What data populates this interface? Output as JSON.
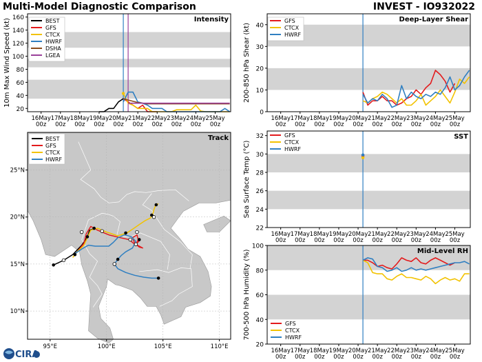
{
  "header": {
    "left_title": "Multi-Model Diagnostic Comparison",
    "right_title": "INVEST - IO932022",
    "logo_text": "CIRA"
  },
  "colors": {
    "BEST": "#000000",
    "GFS": "#e31a1c",
    "CTCX": "#f2c200",
    "HWRF": "#2f7fc1",
    "DSHA": "#8c4a1a",
    "LGEA": "#9a3f9a",
    "band": "#d3d3d3",
    "land": "#c8c8c8",
    "water": "#ffffff"
  },
  "time_axis": {
    "ticks": [
      {
        "d": "16May",
        "h": "00z"
      },
      {
        "d": "17May",
        "h": "00z"
      },
      {
        "d": "18May",
        "h": "00z"
      },
      {
        "d": "19May",
        "h": "00z"
      },
      {
        "d": "20May",
        "h": "00z"
      },
      {
        "d": "21May",
        "h": "00z"
      },
      {
        "d": "22May",
        "h": "00z"
      },
      {
        "d": "23May",
        "h": "00z"
      },
      {
        "d": "24May",
        "h": "00z"
      },
      {
        "d": "25May",
        "h": "00z"
      }
    ],
    "t0_day": 20.25
  },
  "chart_data": [
    {
      "id": "intensity",
      "type": "line",
      "title": "Intensity",
      "ylabel": "10m Max Wind Speed (kt)",
      "xlim": [
        15.3,
        25.8
      ],
      "ylim": [
        15,
        165
      ],
      "yticks": [
        20,
        40,
        60,
        80,
        100,
        120,
        140,
        160
      ],
      "bands": [
        [
          35,
          64
        ],
        [
          83,
          96
        ],
        [
          113,
          137
        ]
      ],
      "vlines": [
        {
          "x": 20.25,
          "color": "HWRF"
        },
        {
          "x": 20.5,
          "color": "LGEA"
        }
      ],
      "legend": [
        "BEST",
        "GFS",
        "CTCX",
        "HWRF",
        "DSHA",
        "LGEA"
      ],
      "series": [
        {
          "name": "BEST",
          "x": [
            19.0,
            19.25,
            19.5,
            19.75,
            20.0,
            20.25
          ],
          "y": [
            15,
            15,
            20,
            20,
            30,
            35
          ]
        },
        {
          "name": "GFS",
          "x": [
            20.25,
            20.5,
            20.75,
            21.0,
            21.25,
            21.5,
            21.75,
            22.0
          ],
          "y": [
            35,
            30,
            25,
            20,
            25,
            15,
            15,
            15
          ]
        },
        {
          "name": "CTCX",
          "x": [
            20.25,
            20.5,
            20.75,
            21.0,
            21.25,
            21.5,
            21.75,
            22.0,
            22.25,
            22.5,
            22.75,
            23.0,
            23.25,
            23.5,
            23.75,
            24.0,
            24.25,
            24.5,
            24.75,
            25.0,
            25.25,
            25.5,
            25.75
          ],
          "y": [
            43,
            28,
            25,
            20,
            20,
            20,
            15,
            15,
            15,
            15,
            15,
            18,
            18,
            18,
            18,
            25,
            16,
            15,
            15,
            15,
            15,
            15,
            15
          ]
        },
        {
          "name": "HWRF",
          "x": [
            20.25,
            20.5,
            20.75,
            21.0,
            21.25,
            21.5,
            21.75,
            22.0,
            22.25,
            22.5,
            22.75,
            23.0,
            23.25,
            23.5,
            23.75,
            24.0,
            24.25,
            24.5,
            24.75,
            25.0,
            25.25,
            25.5,
            25.75
          ],
          "y": [
            30,
            45,
            45,
            30,
            28,
            25,
            20,
            20,
            20,
            15,
            15,
            15,
            15,
            15,
            15,
            15,
            15,
            15,
            15,
            15,
            15,
            20,
            15
          ]
        },
        {
          "name": "DSHA",
          "x": [
            20.25,
            20.5,
            20.75,
            21.0,
            21.25,
            21.5,
            21.75,
            22.0,
            22.25,
            22.5,
            22.75,
            23.0,
            23.25,
            23.5,
            23.75,
            24.0,
            24.25,
            24.5,
            24.75,
            25.0,
            25.25,
            25.5,
            25.75
          ],
          "y": [
            35,
            33,
            31,
            29,
            28,
            27,
            27,
            27,
            27,
            27,
            27,
            27,
            27,
            27,
            27,
            27,
            27,
            27,
            27,
            27,
            27,
            27,
            27
          ]
        },
        {
          "name": "LGEA",
          "x": [
            20.5,
            20.75,
            21.0,
            21.25,
            21.5,
            21.75,
            22.0,
            22.25,
            22.5,
            22.75,
            23.0,
            23.25,
            23.5,
            23.75,
            24.0,
            24.25,
            24.5,
            24.75,
            25.0,
            25.25,
            25.5,
            25.75
          ],
          "y": [
            28,
            28,
            28,
            28,
            28,
            28,
            28,
            28,
            28,
            28,
            28,
            28,
            28,
            28,
            28,
            28,
            28,
            28,
            28,
            28,
            28,
            28
          ]
        }
      ]
    },
    {
      "id": "shear",
      "type": "line",
      "title": "Deep-Layer Shear",
      "ylabel": "200-850 hPa Shear (kt)",
      "xlim": [
        15.3,
        25.8
      ],
      "ylim": [
        0,
        45
      ],
      "yticks": [
        0,
        10,
        20,
        30,
        40
      ],
      "bands": [
        [
          10,
          20
        ],
        [
          30,
          40
        ]
      ],
      "vlines": [
        {
          "x": 20.25,
          "color": "HWRF"
        }
      ],
      "legend": [
        "GFS",
        "CTCX",
        "HWRF"
      ],
      "series": [
        {
          "name": "GFS",
          "x": [
            20.25,
            20.5,
            20.75,
            21.0,
            21.25,
            21.5,
            21.75,
            22.0,
            22.25,
            22.5,
            22.75,
            23.0,
            23.25,
            23.5,
            23.75,
            24.0,
            24.25,
            24.5,
            24.75,
            25.0
          ],
          "y": [
            9,
            3,
            5,
            5,
            7,
            5,
            5,
            3,
            4,
            6,
            7,
            10,
            8,
            11,
            13,
            19,
            17,
            14,
            9,
            13
          ]
        },
        {
          "name": "CTCX",
          "x": [
            20.25,
            20.5,
            20.75,
            21.0,
            21.25,
            21.5,
            21.75,
            22.0,
            22.25,
            22.5,
            22.75,
            23.0,
            23.25,
            23.5,
            23.75,
            24.0,
            24.25,
            24.5,
            24.75,
            25.0,
            25.25,
            25.5,
            25.75
          ],
          "y": [
            5,
            4,
            6,
            7,
            9,
            8,
            6,
            4,
            6,
            3,
            3,
            5,
            8,
            3,
            5,
            7,
            10,
            7,
            4,
            9,
            15,
            13,
            16
          ]
        },
        {
          "name": "HWRF",
          "x": [
            20.25,
            20.5,
            20.75,
            21.0,
            21.25,
            21.5,
            21.75,
            22.0,
            22.25,
            22.5,
            22.75,
            23.0,
            23.25,
            23.5,
            23.75,
            24.0,
            24.25,
            24.5,
            24.75,
            25.0,
            25.25,
            25.5,
            25.75
          ],
          "y": [
            8,
            4,
            6,
            5,
            8,
            6,
            2,
            3,
            12,
            6,
            9,
            7,
            6,
            8,
            7,
            9,
            8,
            11,
            16,
            10,
            12,
            16,
            19
          ]
        }
      ]
    },
    {
      "id": "sst",
      "type": "line",
      "title": "SST",
      "ylabel": "Sea Surface Temp (°C)",
      "xlim": [
        15.3,
        25.8
      ],
      "ylim": [
        22,
        32.5
      ],
      "yticks": [
        22,
        24,
        26,
        28,
        30,
        32
      ],
      "bands": [
        [
          24,
          26
        ],
        [
          28,
          30
        ]
      ],
      "vlines": [
        {
          "x": 20.25,
          "color": "HWRF"
        }
      ],
      "legend": [
        "GFS",
        "CTCX",
        "HWRF"
      ],
      "series": [
        {
          "name": "GFS",
          "x": [
            20.25
          ],
          "y": [
            29.8
          ]
        },
        {
          "name": "CTCX",
          "x": [
            20.25
          ],
          "y": [
            29.6
          ]
        },
        {
          "name": "HWRF",
          "x": [
            20.25
          ],
          "y": [
            29.9
          ]
        }
      ]
    },
    {
      "id": "rh",
      "type": "line",
      "title": "Mid-Level RH",
      "ylabel": "700-500 hPa Humidity (%)",
      "xlim": [
        15.3,
        25.8
      ],
      "ylim": [
        20,
        100
      ],
      "yticks": [
        20,
        40,
        60,
        80,
        100
      ],
      "bands": [
        [
          40,
          60
        ],
        [
          80,
          100
        ]
      ],
      "vlines": [
        {
          "x": 20.25,
          "color": "HWRF"
        }
      ],
      "legend": [
        "GFS",
        "CTCX",
        "HWRF"
      ],
      "series": [
        {
          "name": "GFS",
          "x": [
            20.25,
            20.5,
            20.75,
            21.0,
            21.25,
            21.5,
            21.75,
            22.0,
            22.25,
            22.5,
            22.75,
            23.0,
            23.25,
            23.5,
            23.75,
            24.0,
            24.25,
            24.5,
            24.75,
            25.0
          ],
          "y": [
            88,
            88,
            86,
            83,
            84,
            82,
            81,
            85,
            90,
            88,
            87,
            90,
            86,
            85,
            88,
            90,
            88,
            86,
            84,
            86
          ]
        },
        {
          "name": "CTCX",
          "x": [
            20.25,
            20.5,
            20.75,
            21.0,
            21.25,
            21.5,
            21.75,
            22.0,
            22.25,
            22.5,
            22.75,
            23.0,
            23.25,
            23.5,
            23.75,
            24.0,
            24.25,
            24.5,
            24.75,
            25.0,
            25.25,
            25.5,
            25.75
          ],
          "y": [
            88,
            86,
            78,
            77,
            77,
            73,
            72,
            75,
            77,
            74,
            74,
            73,
            72,
            75,
            73,
            69,
            72,
            74,
            72,
            73,
            71,
            77,
            77
          ]
        },
        {
          "name": "HWRF",
          "x": [
            20.25,
            20.5,
            20.75,
            21.0,
            21.25,
            21.5,
            21.75,
            22.0,
            22.25,
            22.5,
            22.75,
            23.0,
            23.25,
            23.5,
            23.75,
            24.0,
            24.25,
            24.5,
            24.75,
            25.0,
            25.25,
            25.5,
            25.75
          ],
          "y": [
            88,
            90,
            89,
            83,
            82,
            79,
            80,
            82,
            79,
            80,
            82,
            80,
            81,
            80,
            81,
            82,
            83,
            84,
            85,
            86,
            86,
            87,
            85
          ]
        }
      ]
    },
    {
      "id": "track",
      "type": "scatter",
      "title": "Track",
      "xlim": [
        93,
        111
      ],
      "ylim": [
        7,
        29
      ],
      "xticks": [
        {
          "v": 95,
          "label": "95°E"
        },
        {
          "v": 100,
          "label": "100°E"
        },
        {
          "v": 105,
          "label": "105°E"
        },
        {
          "v": 110,
          "label": "110°E"
        }
      ],
      "yticks": [
        {
          "v": 10,
          "label": "10°N"
        },
        {
          "v": 15,
          "label": "15°N"
        },
        {
          "v": 20,
          "label": "20°N"
        },
        {
          "v": 25,
          "label": "25°N"
        }
      ],
      "legend": [
        "BEST",
        "GFS",
        "CTCX",
        "HWRF"
      ],
      "series": [
        {
          "name": "BEST",
          "lon": [
            95.3,
            96.2,
            97.0,
            97.4,
            97.8,
            98.1,
            98.3,
            98.5,
            99.0
          ],
          "lat": [
            14.9,
            15.4,
            16.0,
            16.5,
            17.0,
            17.5,
            17.9,
            18.6,
            18.8
          ]
        },
        {
          "name": "GFS",
          "lon": [
            97.2,
            97.6,
            98.0,
            98.2,
            98.6,
            99.2,
            100.2,
            101.2,
            102.0,
            102.6,
            102.8,
            102.7,
            102.3,
            102.5,
            102.9,
            103.2,
            102.6,
            103.0
          ],
          "lat": [
            16.0,
            16.6,
            17.2,
            18.2,
            19.0,
            18.6,
            18.1,
            17.8,
            17.6,
            17.0,
            17.6,
            18.1,
            17.8,
            17.2,
            16.8,
            16.7,
            17.1,
            17.6
          ]
        },
        {
          "name": "CTCX",
          "lon": [
            97.0,
            97.4,
            98.0,
            98.3,
            98.6,
            99.2,
            100.0,
            101.0,
            101.8,
            102.3,
            102.9,
            103.4,
            103.9,
            104.1,
            104.2,
            104.3,
            104.4,
            104.6
          ],
          "lat": [
            15.7,
            16.3,
            17.0,
            17.8,
            18.6,
            18.8,
            18.4,
            18.0,
            18.3,
            18.7,
            19.2,
            19.6,
            19.9,
            20.3,
            20.8,
            21.1,
            21.3,
            21.4
          ]
        },
        {
          "name": "HWRF",
          "lon": [
            97.2,
            97.8,
            98.4,
            99.0,
            99.6,
            100.2,
            100.6,
            101.0,
            101.6,
            102.2,
            102.6,
            102.3,
            101.7,
            101.3,
            101.0,
            100.7,
            101.0,
            101.7,
            102.5,
            103.3,
            104.0,
            104.6
          ],
          "lat": [
            16.1,
            16.6,
            17.0,
            16.9,
            16.9,
            16.9,
            17.3,
            17.8,
            18.1,
            17.9,
            17.4,
            16.7,
            16.3,
            15.9,
            15.5,
            15.0,
            14.5,
            14.1,
            13.8,
            13.6,
            13.5,
            13.5
          ]
        }
      ],
      "markers_filled": [
        {
          "lon": 95.3,
          "lat": 14.9
        },
        {
          "lon": 98.3,
          "lat": 17.9
        },
        {
          "lon": 101.7,
          "lat": 18.3
        },
        {
          "lon": 102.9,
          "lat": 17.6
        },
        {
          "lon": 101.0,
          "lat": 15.5
        },
        {
          "lon": 104.6,
          "lat": 13.5
        },
        {
          "lon": 104.0,
          "lat": 20.2
        },
        {
          "lon": 104.4,
          "lat": 21.3
        },
        {
          "lon": 97.2,
          "lat": 16.0
        },
        {
          "lon": 98.9,
          "lat": 18.8
        }
      ],
      "markers_open": [
        {
          "lon": 96.2,
          "lat": 15.4
        },
        {
          "lon": 97.8,
          "lat": 18.4
        },
        {
          "lon": 99.6,
          "lat": 18.5
        },
        {
          "lon": 102.1,
          "lat": 17.6
        },
        {
          "lon": 102.6,
          "lat": 17.1
        },
        {
          "lon": 100.7,
          "lat": 15.0
        },
        {
          "lon": 104.2,
          "lat": 20.0
        },
        {
          "lon": 102.7,
          "lat": 18.4
        }
      ]
    }
  ]
}
